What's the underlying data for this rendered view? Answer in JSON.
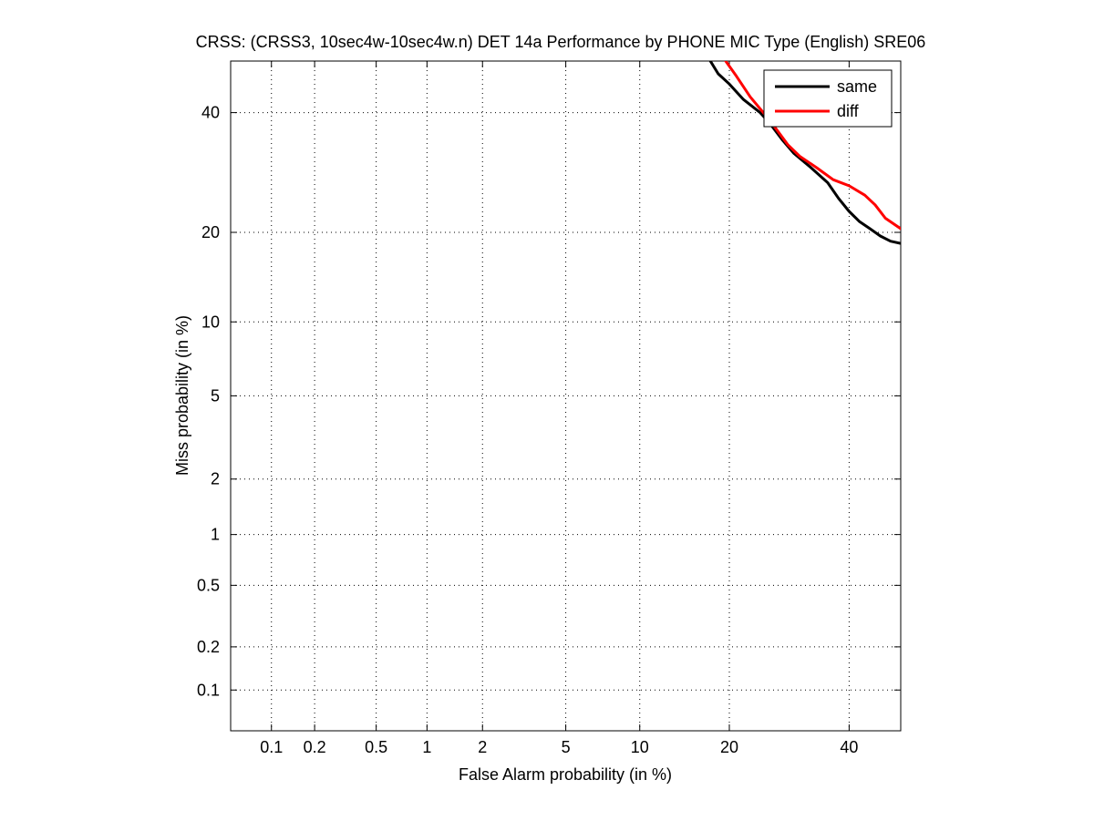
{
  "chart_data": {
    "type": "line",
    "title": "CRSS: (CRSS3, 10sec4w-10sec4w.n) DET 14a Performance by PHONE MIC Type (English) SRE06",
    "xlabel": "False Alarm probability (in %)",
    "ylabel": "Miss probability (in %)",
    "scale": "normal-deviate (probit) on both axes",
    "xlim": [
      0.05,
      50
    ],
    "ylim": [
      0.05,
      50
    ],
    "x_ticks": [
      0.1,
      0.2,
      0.5,
      1,
      2,
      5,
      10,
      20,
      40
    ],
    "x_tick_labels": [
      "0.1",
      "0.2",
      "0.5",
      "1",
      "2",
      "5",
      "10",
      "20",
      "40"
    ],
    "y_ticks": [
      0.1,
      0.2,
      0.5,
      1,
      2,
      5,
      10,
      20,
      40
    ],
    "y_tick_labels": [
      "0.1",
      "0.2",
      "0.5",
      "1",
      "2",
      "5",
      "10",
      "20",
      "40"
    ],
    "grid": true,
    "grid_style": "dotted",
    "legend_position": "top-right",
    "series": [
      {
        "name": "same",
        "color": "#000000",
        "points": [
          [
            17.5,
            50
          ],
          [
            18.5,
            47.5
          ],
          [
            20,
            45.5
          ],
          [
            22,
            42.5
          ],
          [
            24.5,
            40
          ],
          [
            26,
            38
          ],
          [
            28,
            35
          ],
          [
            30,
            32.5
          ],
          [
            33,
            30
          ],
          [
            36,
            27.5
          ],
          [
            38,
            25
          ],
          [
            40,
            23
          ],
          [
            42,
            21.5
          ],
          [
            44,
            20.5
          ],
          [
            46,
            19.5
          ],
          [
            48,
            18.8
          ],
          [
            50,
            18.5
          ]
        ]
      },
      {
        "name": "diff",
        "color": "#ff0000",
        "points": [
          [
            19.5,
            50
          ],
          [
            21,
            47
          ],
          [
            23,
            43
          ],
          [
            25,
            40
          ],
          [
            27,
            37
          ],
          [
            29,
            34
          ],
          [
            31,
            32
          ],
          [
            34,
            30
          ],
          [
            37,
            28
          ],
          [
            40,
            27
          ],
          [
            43,
            25.5
          ],
          [
            45,
            24
          ],
          [
            47,
            22
          ],
          [
            50,
            20.5
          ]
        ]
      }
    ]
  }
}
